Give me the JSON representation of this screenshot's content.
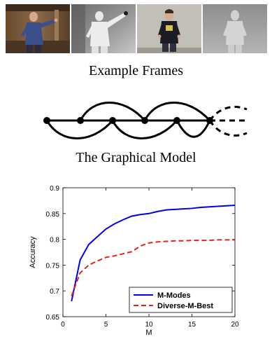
{
  "figure": {
    "caption_frames": "Example Frames",
    "caption_model": "The Graphical Model"
  },
  "colors": {
    "m_modes": "#0000ee",
    "diverse_m_best": "#e8221a"
  },
  "chart_data": {
    "type": "line",
    "xlabel": "M",
    "ylabel": "Accuracy",
    "xlim": [
      0,
      20
    ],
    "ylim": [
      0.65,
      0.9
    ],
    "xticks": [
      0,
      5,
      10,
      15,
      20
    ],
    "yticks": [
      0.65,
      0.7,
      0.75,
      0.8,
      0.85,
      0.9
    ],
    "grid": false,
    "legend_position": "bottom-right",
    "series": [
      {
        "name": "M-Modes",
        "style": "solid",
        "x": [
          1,
          2,
          3,
          4,
          5,
          6,
          7,
          8,
          9,
          10,
          11,
          12,
          13,
          14,
          15,
          16,
          17,
          18,
          19,
          20
        ],
        "values": [
          0.68,
          0.76,
          0.79,
          0.805,
          0.82,
          0.83,
          0.838,
          0.845,
          0.848,
          0.85,
          0.854,
          0.857,
          0.858,
          0.859,
          0.86,
          0.862,
          0.863,
          0.864,
          0.865,
          0.866
        ]
      },
      {
        "name": "Diverse-M-Best",
        "style": "dashed",
        "x": [
          1,
          2,
          3,
          4,
          5,
          6,
          7,
          8,
          9,
          10,
          11,
          12,
          13,
          14,
          15,
          16,
          17,
          18,
          19,
          20
        ],
        "values": [
          0.69,
          0.735,
          0.75,
          0.758,
          0.765,
          0.768,
          0.772,
          0.776,
          0.787,
          0.793,
          0.795,
          0.796,
          0.797,
          0.797,
          0.798,
          0.798,
          0.798,
          0.799,
          0.799,
          0.799
        ]
      }
    ]
  }
}
